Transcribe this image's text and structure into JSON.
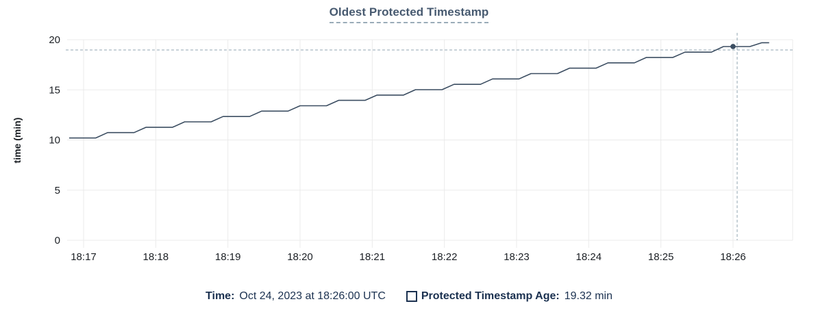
{
  "title": "Oldest Protected Timestamp",
  "legend": {
    "time_label": "Time:",
    "time_value": "Oct 24, 2023 at 18:26:00 UTC",
    "series_label": "Protected Timestamp Age:",
    "series_value": "19.32 min"
  },
  "colors": {
    "line": "#3b4d61",
    "dot": "#3b4d61",
    "grid": "#ebebeb",
    "crosshair": "#90a5b1",
    "axis_text": "#1b1f24",
    "title_text": "#475a70",
    "legend_text": "#1b3150"
  },
  "chart_data": {
    "type": "line",
    "title": "Oldest Protected Timestamp",
    "xlabel": "",
    "ylabel": "time (min)",
    "ylim": [
      0,
      20
    ],
    "y_ticks": [
      0,
      5,
      10,
      15,
      20
    ],
    "x_ticks": [
      "18:17",
      "18:18",
      "18:19",
      "18:20",
      "18:21",
      "18:22",
      "18:23",
      "18:24",
      "18:25",
      "18:26"
    ],
    "grid": true,
    "legend_position": "bottom",
    "series": [
      {
        "name": "Protected Timestamp Age",
        "points": [
          [
            "18:16:48",
            10.2
          ],
          [
            "18:17:10",
            10.2
          ],
          [
            "18:17:20",
            10.74
          ],
          [
            "18:17:42",
            10.74
          ],
          [
            "18:17:52",
            11.27
          ],
          [
            "18:18:14",
            11.27
          ],
          [
            "18:18:24",
            11.81
          ],
          [
            "18:18:46",
            11.81
          ],
          [
            "18:18:56",
            12.34
          ],
          [
            "18:19:18",
            12.34
          ],
          [
            "18:19:28",
            12.88
          ],
          [
            "18:19:50",
            12.88
          ],
          [
            "18:20:00",
            13.41
          ],
          [
            "18:20:22",
            13.41
          ],
          [
            "18:20:32",
            13.95
          ],
          [
            "18:20:54",
            13.95
          ],
          [
            "18:21:04",
            14.48
          ],
          [
            "18:21:26",
            14.48
          ],
          [
            "18:21:36",
            15.02
          ],
          [
            "18:21:58",
            15.02
          ],
          [
            "18:22:08",
            15.55
          ],
          [
            "18:22:30",
            15.55
          ],
          [
            "18:22:40",
            16.09
          ],
          [
            "18:23:02",
            16.09
          ],
          [
            "18:23:12",
            16.62
          ],
          [
            "18:23:34",
            16.62
          ],
          [
            "18:23:44",
            17.16
          ],
          [
            "18:24:06",
            17.16
          ],
          [
            "18:24:16",
            17.69
          ],
          [
            "18:24:38",
            17.69
          ],
          [
            "18:24:48",
            18.23
          ],
          [
            "18:25:10",
            18.23
          ],
          [
            "18:25:20",
            18.76
          ],
          [
            "18:25:42",
            18.76
          ],
          [
            "18:25:52",
            19.32
          ],
          [
            "18:26:14",
            19.32
          ],
          [
            "18:26:24",
            19.7
          ],
          [
            "18:26:30",
            19.7
          ]
        ]
      }
    ],
    "crosshair": {
      "time": "18:26:00",
      "value": 19.32
    }
  }
}
